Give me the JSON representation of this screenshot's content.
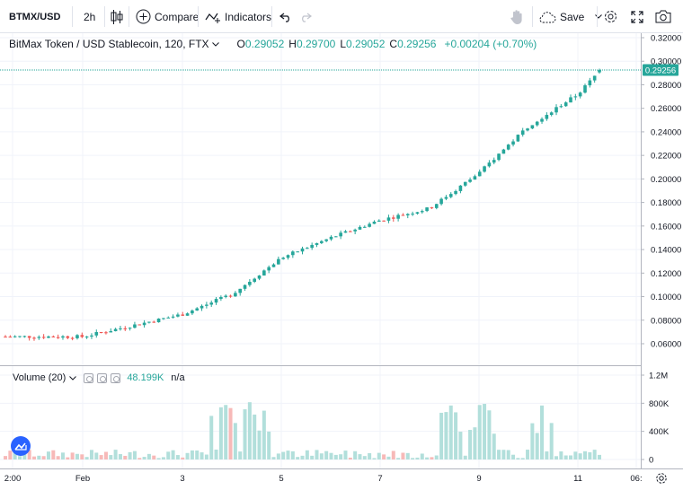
{
  "toolbar": {
    "symbol": "BTMX/USD",
    "interval": "2h",
    "compare_label": "Compare",
    "indicators_label": "Indicators",
    "save_label": "Save"
  },
  "legend": {
    "title": "BitMax Token / USD Stablecoin, 120, FTX",
    "o_key": "O",
    "o_val": "0.29052",
    "h_key": "H",
    "h_val": "0.29700",
    "l_key": "L",
    "l_val": "0.29052",
    "c_key": "C",
    "c_val": "0.29256",
    "change": "+0.00204 (+0.70%)"
  },
  "volume_legend": {
    "label": "Volume (20)",
    "value": "48.199K",
    "na": "n/a"
  },
  "price_axis": {
    "ticks": [
      "0.32000",
      "0.30000",
      "0.28000",
      "0.26000",
      "0.24000",
      "0.22000",
      "0.20000",
      "0.18000",
      "0.16000",
      "0.14000",
      "0.12000",
      "0.10000",
      "0.08000",
      "0.06000"
    ],
    "last_price": "0.29256"
  },
  "volume_axis": {
    "ticks": [
      "1.2M",
      "800K",
      "400K",
      "0"
    ]
  },
  "time_axis": {
    "ticks": [
      "2:00",
      "Feb",
      "3",
      "5",
      "7",
      "9",
      "11",
      "06:"
    ]
  },
  "colors": {
    "up": "#26a69a",
    "down": "#ef5350",
    "up_vol": "#b2dfdb",
    "down_vol": "#f7b9b8",
    "last_line": "#26a69a"
  },
  "icons": [
    "candles-icon",
    "compare-plus-icon",
    "indicators-icon",
    "undo-icon",
    "redo-icon",
    "hand-icon",
    "cloud-save-icon",
    "settings-gear-icon",
    "fullscreen-icon",
    "camera-icon",
    "chevron-down-icon",
    "tv-logo-icon",
    "settings-small-icon"
  ],
  "chart_data": {
    "type": "candlestick",
    "title": "BitMax Token / USD Stablecoin, 120, FTX",
    "x": [
      "2:00",
      "Feb",
      "3",
      "5",
      "7",
      "9",
      "11"
    ],
    "ylim": [
      0.05,
      0.32
    ],
    "volume_ylim": [
      0,
      1300000
    ],
    "key_points": [
      {
        "x": "2:00",
        "close": 0.066
      },
      {
        "x": "Feb",
        "close": 0.066
      },
      {
        "x": "3",
        "close": 0.085
      },
      {
        "x": "4",
        "close": 0.102
      },
      {
        "x": "5",
        "close": 0.133
      },
      {
        "x": "6",
        "close": 0.15
      },
      {
        "x": "7",
        "close": 0.165
      },
      {
        "x": "8",
        "close": 0.175
      },
      {
        "x": "9",
        "close": 0.205
      },
      {
        "x": "10",
        "close": 0.245
      },
      {
        "x": "11",
        "close": 0.272
      },
      {
        "x": "11.5",
        "close": 0.29256
      }
    ],
    "last": {
      "open": 0.29052,
      "high": 0.297,
      "low": 0.29052,
      "close": 0.29256,
      "change": 0.00204,
      "change_pct": 0.7
    }
  }
}
